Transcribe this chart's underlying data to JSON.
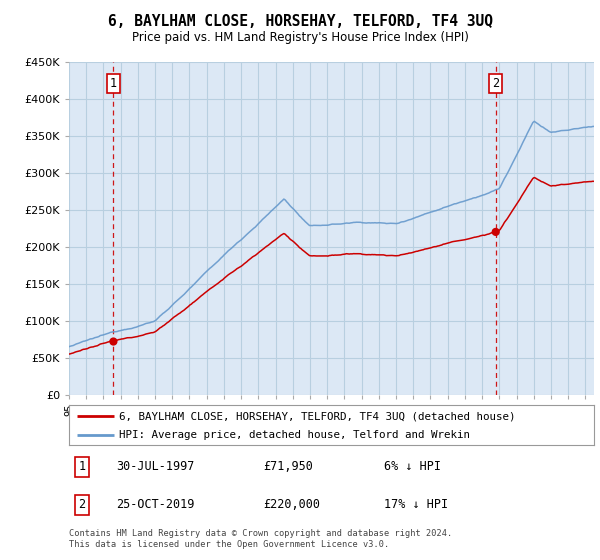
{
  "title": "6, BAYLHAM CLOSE, HORSEHAY, TELFORD, TF4 3UQ",
  "subtitle": "Price paid vs. HM Land Registry's House Price Index (HPI)",
  "legend_line1": "6, BAYLHAM CLOSE, HORSEHAY, TELFORD, TF4 3UQ (detached house)",
  "legend_line2": "HPI: Average price, detached house, Telford and Wrekin",
  "annotation1_date": "30-JUL-1997",
  "annotation1_price": 71950,
  "annotation1_price_str": "£71,950",
  "annotation1_hpi_diff": "6% ↓ HPI",
  "annotation2_date": "25-OCT-2019",
  "annotation2_price": 220000,
  "annotation2_price_str": "£220,000",
  "annotation2_hpi_diff": "17% ↓ HPI",
  "footer": "Contains HM Land Registry data © Crown copyright and database right 2024.\nThis data is licensed under the Open Government Licence v3.0.",
  "ylim": [
    0,
    450000
  ],
  "yticks": [
    0,
    50000,
    100000,
    150000,
    200000,
    250000,
    300000,
    350000,
    400000,
    450000
  ],
  "ytick_labels": [
    "£0",
    "£50K",
    "£100K",
    "£150K",
    "£200K",
    "£250K",
    "£300K",
    "£350K",
    "£400K",
    "£450K"
  ],
  "color_house": "#cc0000",
  "color_hpi": "#6699cc",
  "color_vline": "#cc0000",
  "plot_bg": "#dce8f5",
  "grid_color": "#b8cfe0",
  "sale1_year": 1997.58,
  "sale2_year": 2019.79,
  "sale1_price": 71950,
  "sale2_price": 220000,
  "xmin": 1995,
  "xmax": 2025.5
}
